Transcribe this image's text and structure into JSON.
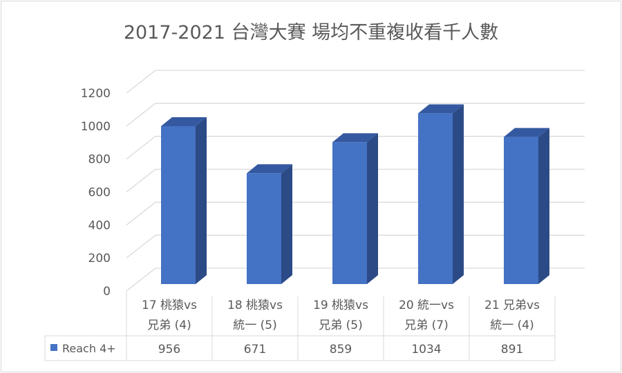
{
  "chart_data": {
    "type": "bar",
    "title": "2017-2021 台灣大賽 場均不重複收看千人數",
    "categories": [
      [
        "17 桃猿vs",
        "兄弟 (4)"
      ],
      [
        "18 桃猿vs",
        "統一 (5)"
      ],
      [
        "19 桃猿vs",
        "兄弟 (5)"
      ],
      [
        "20 統一vs",
        "兄弟 (7)"
      ],
      [
        "21 兄弟vs",
        "統一 (4)"
      ]
    ],
    "series": [
      {
        "name": "Reach 4+",
        "values": [
          956,
          671,
          859,
          1034,
          891
        ],
        "color": "#4472C4"
      }
    ],
    "value_labels": [
      "956",
      "671",
      "859",
      "1034",
      "891"
    ],
    "ylim": [
      0,
      1200
    ],
    "yticks": [
      "0",
      "200",
      "400",
      "600",
      "800",
      "1000",
      "1200"
    ],
    "grid": true,
    "legend": "data-table-left",
    "style": "3d-column-with-data-table"
  }
}
